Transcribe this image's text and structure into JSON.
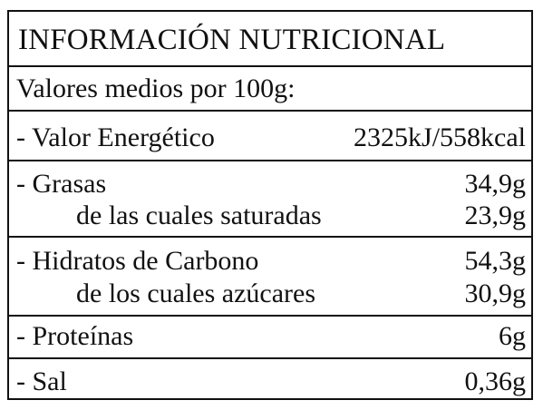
{
  "title": "INFORMACIÓN NUTRICIONAL",
  "subtitle": "Valores medios por 100g:",
  "rows": [
    {
      "name": "- Valor Energético",
      "value": "2325kJ/558kcal"
    },
    {
      "name": "- Grasas",
      "value": "34,9g"
    },
    {
      "name": "de las cuales saturadas",
      "value": "23,9g"
    },
    {
      "name": "- Hidratos de Carbono",
      "value": "54,3g"
    },
    {
      "name": "de los cuales azúcares",
      "value": "30,9g"
    },
    {
      "name": "- Proteínas",
      "value": "6g"
    },
    {
      "name": "- Sal",
      "value": "0,36g"
    }
  ]
}
